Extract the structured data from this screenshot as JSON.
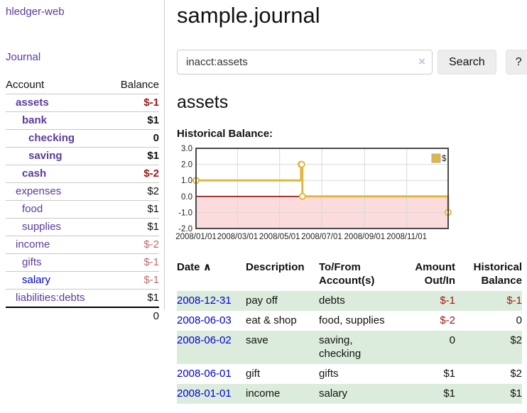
{
  "app": {
    "brand": "hledger-web",
    "nav_journal": "Journal"
  },
  "icons": {
    "sort_asc": "∧",
    "clear": "×"
  },
  "sidebar": {
    "header": {
      "account": "Account",
      "balance": "Balance"
    },
    "rows": [
      {
        "name": "assets",
        "balance": "$-1",
        "indent": 1,
        "bold": true
      },
      {
        "name": "bank",
        "balance": "$1",
        "indent": 2,
        "bold": true
      },
      {
        "name": "checking",
        "balance": "0",
        "indent": 3,
        "bold": true
      },
      {
        "name": "saving",
        "balance": "$1",
        "indent": 3,
        "bold": true
      },
      {
        "name": "cash",
        "balance": "$-2",
        "indent": 2,
        "bold": true
      },
      {
        "name": "expenses",
        "balance": "$2",
        "indent": 1,
        "bold": false
      },
      {
        "name": "food",
        "balance": "$1",
        "indent": 2,
        "bold": false
      },
      {
        "name": "supplies",
        "balance": "$1",
        "indent": 2,
        "bold": false
      },
      {
        "name": "income",
        "balance": "$-2",
        "indent": 1,
        "bold": false
      },
      {
        "name": "gifts",
        "balance": "$-1",
        "indent": 2,
        "bold": false
      },
      {
        "name": "salary",
        "balance": "$-1",
        "indent": 2,
        "bold": false,
        "link_blue": true
      },
      {
        "name": "liabilities:debts",
        "balance": "$1",
        "indent": 1,
        "bold": false
      }
    ],
    "total": "0"
  },
  "header": {
    "title": "sample.journal"
  },
  "search": {
    "value": "inacct:assets",
    "button_label": "Search",
    "help_label": "?"
  },
  "account_page": {
    "title": "assets",
    "chart_label": "Historical Balance:"
  },
  "chart_data": {
    "type": "line",
    "title": "Historical Balance",
    "step": true,
    "series": [
      {
        "name": "$",
        "points": [
          [
            "2008/01/01",
            1
          ],
          [
            "2008/06/01",
            2
          ],
          [
            "2008/06/02",
            2
          ],
          [
            "2008/06/03",
            0
          ],
          [
            "2008/12/31",
            -1
          ]
        ]
      }
    ],
    "x_range": [
      "2008/01/01",
      "2008/12/31"
    ],
    "x_tick_labels": [
      "2008/01/01",
      "2008/03/01",
      "2008/05/01",
      "2008/07/01",
      "2008/09/01",
      "2008/11/01"
    ],
    "y_tick_labels": [
      "3.0",
      "2.0",
      "1.0",
      "0.0",
      "-1.0",
      "-2.0"
    ],
    "y_ticks": [
      3,
      2,
      1,
      0,
      -1,
      -2
    ],
    "ylim": [
      -2,
      3
    ],
    "grid": true,
    "legend_position": "top-right",
    "line_color": "#e0b83e",
    "marker_fill": "#ffffff",
    "negative_fill": "#fbdbdb",
    "zero_line_color": "#8b0000",
    "grid_color": "#d9d9d9",
    "border_color": "#4a4a4a"
  },
  "register": {
    "columns": [
      "Date",
      "Description",
      "To/From Account(s)",
      "Amount Out/In",
      "Historical Balance"
    ],
    "rows": [
      {
        "date": "2008-12-31",
        "description": "pay off",
        "accounts": "debts",
        "amount": "$-1",
        "balance": "$-1"
      },
      {
        "date": "2008-06-03",
        "description": "eat & shop",
        "accounts": "food, supplies",
        "amount": "$-2",
        "balance": "0"
      },
      {
        "date": "2008-06-02",
        "description": "save",
        "accounts": "saving, checking",
        "amount": "0",
        "balance": "$2"
      },
      {
        "date": "2008-06-01",
        "description": "gift",
        "accounts": "gifts",
        "amount": "$1",
        "balance": "$2"
      },
      {
        "date": "2008-01-01",
        "description": "income",
        "accounts": "salary",
        "amount": "$1",
        "balance": "$1"
      }
    ]
  }
}
